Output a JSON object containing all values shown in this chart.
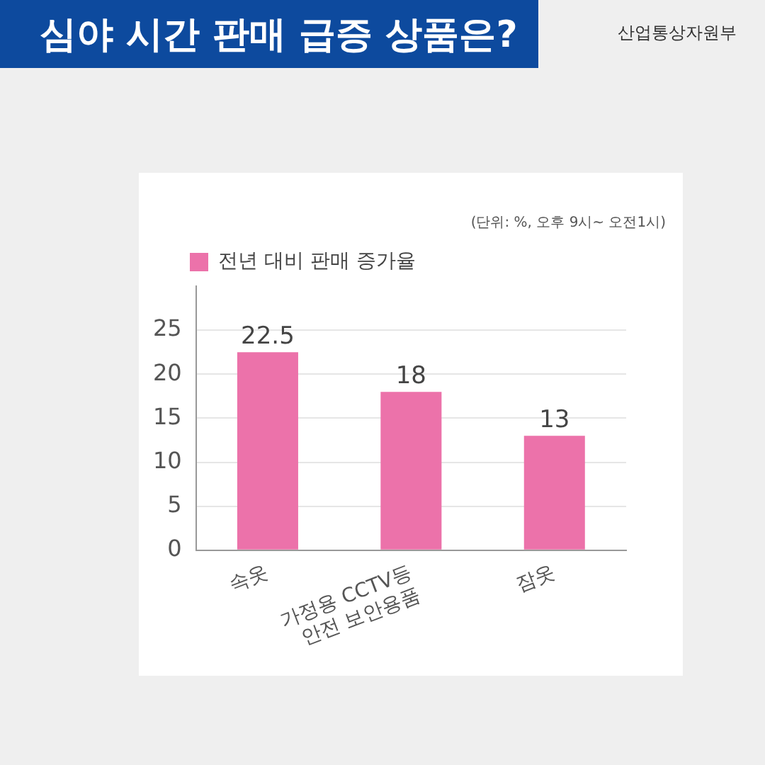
{
  "chart_data": {
    "type": "bar",
    "title": "심야 시간 판매 급증 상품은?",
    "categories": [
      "속옷",
      "가정용 CCTV등\n안전 보안용품",
      "잠옷"
    ],
    "series": [
      {
        "name": "전년 대비 판매 증가율",
        "color": "#ec72aa",
        "values": [
          22.5,
          18,
          13
        ]
      }
    ],
    "ylim": [
      0,
      30
    ],
    "yticks": [
      0,
      5,
      10,
      15,
      20,
      25
    ],
    "grid": "y",
    "legend": "top left",
    "data_labels": true,
    "annotations": [
      "(단위: %, 오후 9시~ 오전1시)",
      "산업통상자원부"
    ]
  }
}
